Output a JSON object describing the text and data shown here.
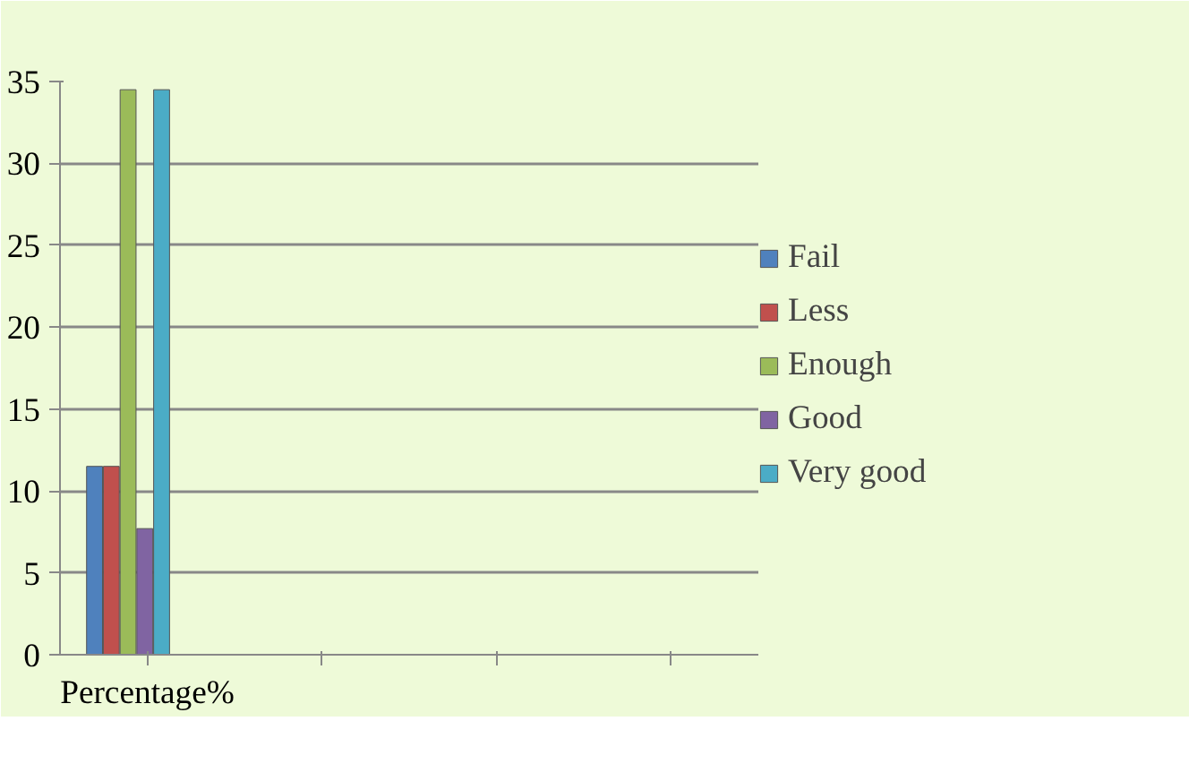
{
  "chart_data": {
    "type": "bar",
    "categories": [
      "Percentage%",
      null,
      null,
      null
    ],
    "series": [
      {
        "name": "Fail",
        "color": "#4f81bd",
        "values": [
          11.5,
          null,
          null,
          null
        ]
      },
      {
        "name": "Less",
        "color": "#c0504d",
        "values": [
          11.5,
          null,
          null,
          null
        ]
      },
      {
        "name": "Enough",
        "color": "#9bbb59",
        "values": [
          34.5,
          null,
          null,
          null
        ]
      },
      {
        "name": "Good",
        "color": "#8064a2",
        "values": [
          7.7,
          null,
          null,
          null
        ]
      },
      {
        "name": "Very good",
        "color": "#4bacc6",
        "values": [
          34.5,
          null,
          null,
          null
        ]
      }
    ],
    "ylim": [
      0,
      35
    ],
    "yticks": [
      0,
      5,
      10,
      15,
      20,
      25,
      30,
      35
    ],
    "grid": "y",
    "legend": "right"
  }
}
